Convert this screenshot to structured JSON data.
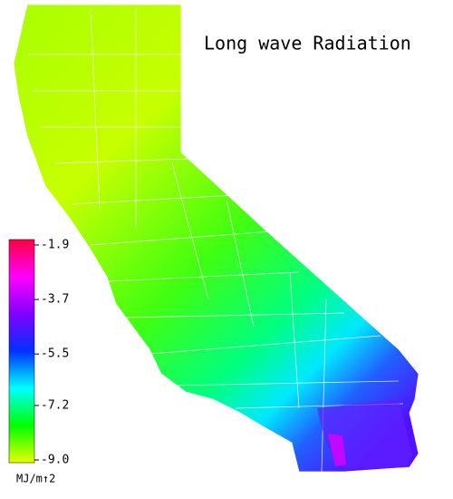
{
  "title": "Long wave Radiation",
  "colorbar": {
    "unit": "MJ/m↑2",
    "range": [
      -9.0,
      -1.9
    ],
    "ticks": [
      -1.9,
      -3.7,
      -5.5,
      -7.2,
      {
        "value": -9,
        "label": "-9.0"
      }
    ],
    "colors": [
      "#e8ff00",
      "#00ff00",
      "#00ffff",
      "#0030ff",
      "#8000ff",
      "#ff00ff",
      "#ff0040"
    ]
  }
}
